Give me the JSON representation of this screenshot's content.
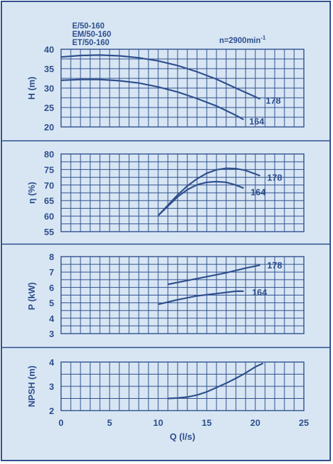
{
  "header": {
    "models": [
      "E/50-160",
      "EM/50-160",
      "ET/50-160"
    ],
    "speed_prefix": "n=2900min",
    "speed_exp": "-1"
  },
  "colors": {
    "ink": "#2e4f8c",
    "background": "#d8e6f4"
  },
  "chart_data": [
    {
      "type": "line",
      "ylabel": "H (m)",
      "ylim": [
        20,
        40
      ],
      "yticks": [
        20,
        25,
        30,
        35,
        40
      ],
      "xlim": [
        0,
        25
      ],
      "series": [
        {
          "name": "178",
          "x": [
            0,
            2,
            4,
            6,
            8,
            10,
            12,
            14,
            16,
            18,
            20.5
          ],
          "values": [
            38.0,
            38.4,
            38.5,
            38.3,
            37.8,
            37.0,
            35.8,
            34.2,
            32.3,
            30.0,
            27.2
          ]
        },
        {
          "name": "164",
          "x": [
            0,
            2,
            4,
            6,
            8,
            10,
            12,
            14,
            16,
            18,
            18.8
          ],
          "values": [
            32.0,
            32.2,
            32.2,
            31.9,
            31.3,
            30.3,
            29.0,
            27.3,
            25.4,
            23.0,
            21.9
          ]
        }
      ]
    },
    {
      "type": "line",
      "ylabel": "η (%)",
      "ylim": [
        55,
        80
      ],
      "yticks": [
        55,
        60,
        65,
        70,
        75,
        80
      ],
      "xlim": [
        0,
        25
      ],
      "series": [
        {
          "name": "178",
          "x": [
            10,
            11,
            12,
            13,
            14,
            15,
            16,
            17,
            18,
            19,
            20.5
          ],
          "values": [
            60.2,
            63.5,
            66.8,
            69.7,
            72.0,
            73.8,
            74.9,
            75.4,
            75.3,
            74.7,
            73.0
          ]
        },
        {
          "name": "164",
          "x": [
            10,
            11,
            12,
            13,
            14,
            15,
            16,
            17,
            18,
            18.8
          ],
          "values": [
            60.2,
            63.2,
            66.2,
            68.5,
            70.1,
            70.9,
            71.1,
            70.9,
            70.0,
            69.0
          ]
        }
      ]
    },
    {
      "type": "line",
      "ylabel": "P (kW)",
      "ylim": [
        3,
        8
      ],
      "yticks": [
        3,
        4,
        5,
        6,
        7,
        8
      ],
      "xlim": [
        0,
        25
      ],
      "series": [
        {
          "name": "178",
          "x": [
            11,
            13,
            15,
            17,
            19,
            20.5
          ],
          "values": [
            6.2,
            6.45,
            6.7,
            6.95,
            7.25,
            7.45
          ]
        },
        {
          "name": "164",
          "x": [
            10,
            12,
            14,
            16,
            18,
            18.8
          ],
          "values": [
            4.9,
            5.2,
            5.45,
            5.6,
            5.75,
            5.75
          ]
        }
      ]
    },
    {
      "type": "line",
      "ylabel": "NPSH (m)",
      "ylim": [
        2,
        4
      ],
      "yticks": [
        2,
        3,
        4
      ],
      "xlim": [
        0,
        25
      ],
      "xticks": [
        0,
        5,
        10,
        15,
        20,
        25
      ],
      "xlabel": "Q (l/s)",
      "series": [
        {
          "x": [
            11,
            12,
            13,
            14,
            15,
            16,
            17,
            18,
            19,
            20,
            20.8
          ],
          "values": [
            2.5,
            2.52,
            2.56,
            2.64,
            2.77,
            2.95,
            3.13,
            3.33,
            3.55,
            3.8,
            3.95
          ]
        }
      ]
    }
  ]
}
